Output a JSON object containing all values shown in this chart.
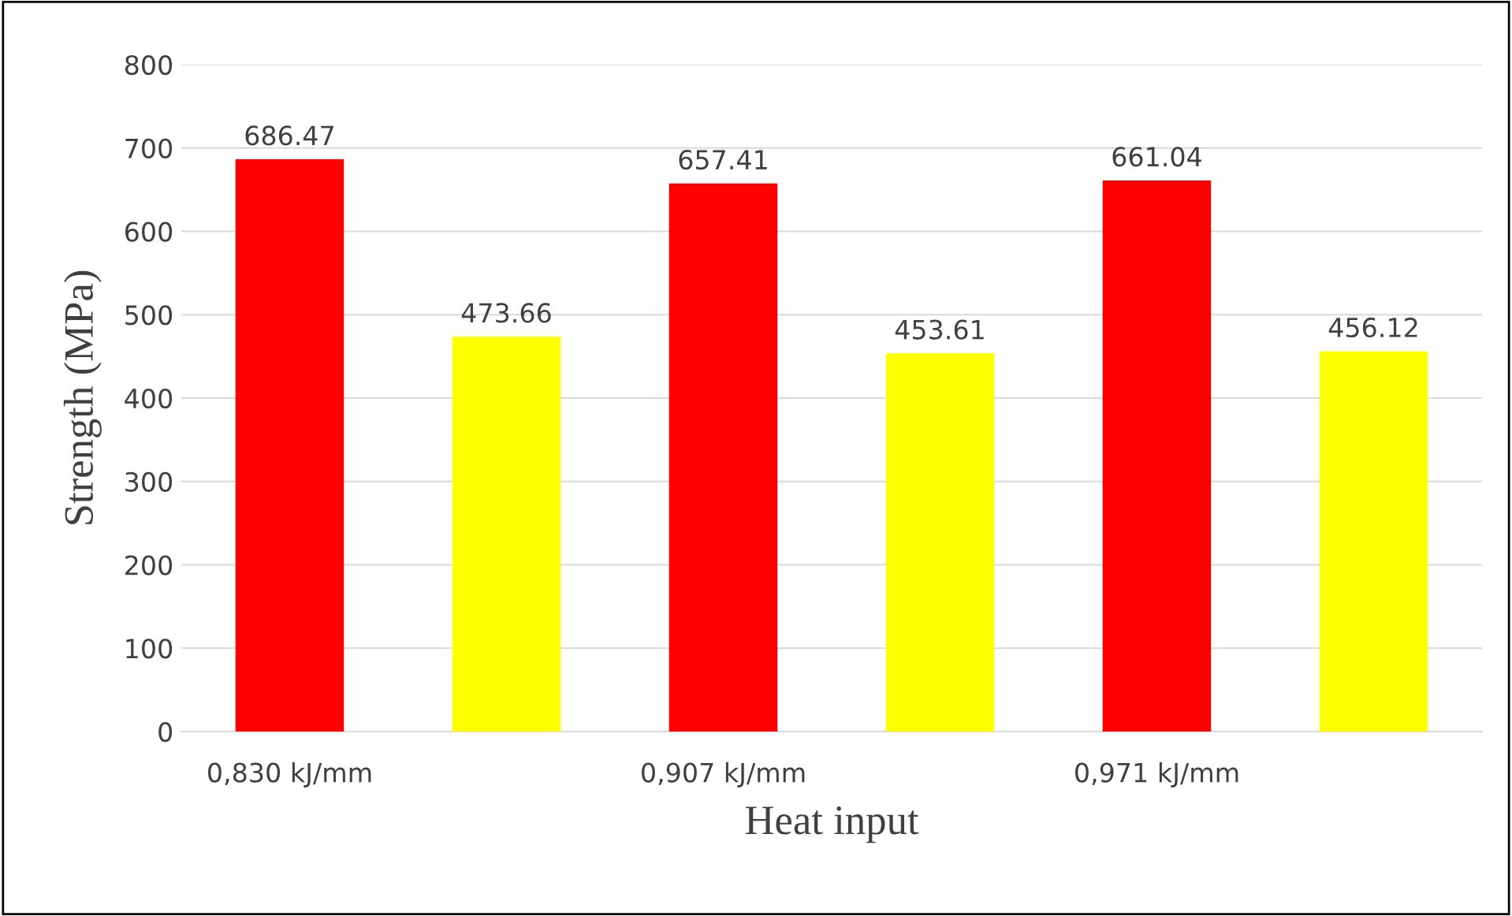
{
  "chart_data": {
    "type": "bar",
    "xlabel": "Heat input",
    "ylabel": "Strength (MPa)",
    "categories": [
      "0,830 kJ/mm",
      null,
      "0,907 kJ/mm",
      null,
      "0,971 kJ/mm",
      null
    ],
    "values": [
      686.47,
      473.66,
      657.41,
      453.61,
      661.04,
      456.12
    ],
    "colors": [
      "#ff0000",
      "#ffff00",
      "#ff0000",
      "#ffff00",
      "#ff0000",
      "#ffff00"
    ],
    "ylim": [
      0,
      800
    ],
    "yticks": [
      0,
      100,
      200,
      300,
      400,
      500,
      600,
      700,
      800
    ],
    "grid": "y",
    "data_labels": true
  }
}
